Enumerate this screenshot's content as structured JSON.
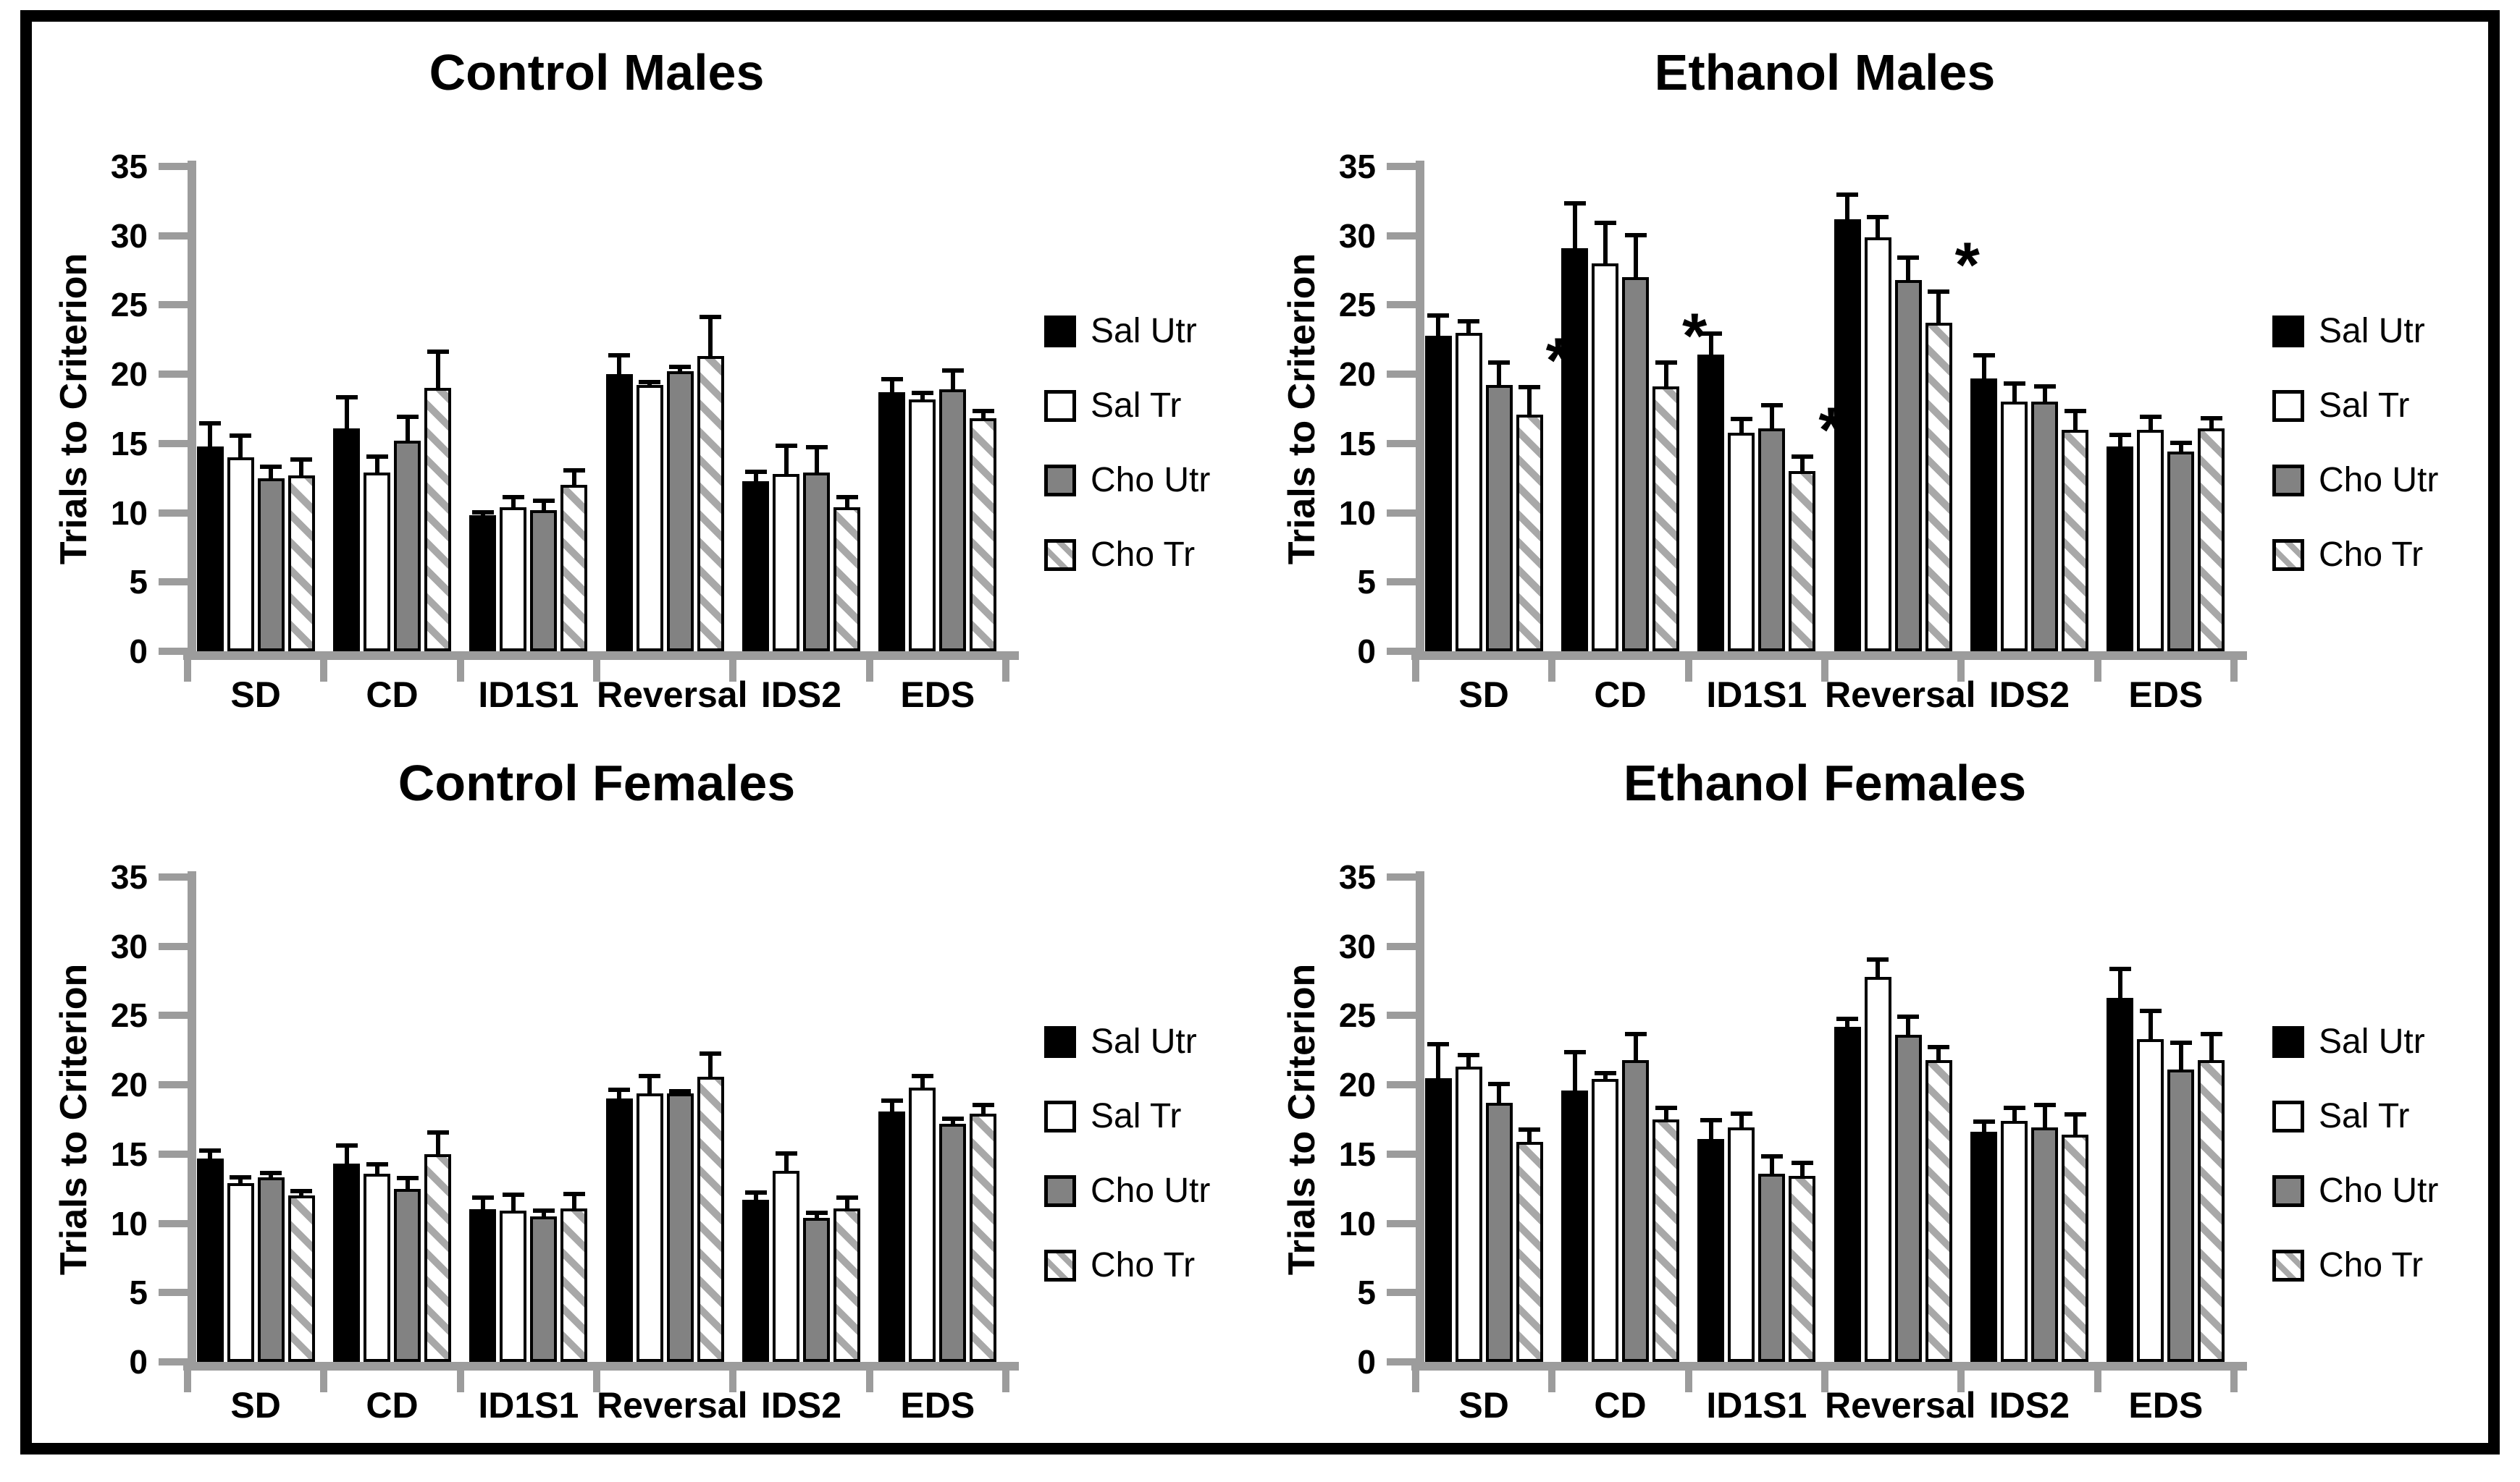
{
  "figure": {
    "background": "#ffffff",
    "border_color": "#000000",
    "axis_color": "#9c9c9c",
    "text_color": "#000000",
    "bar_black": "#000000",
    "bar_gray": "#828282",
    "hatch_stripe": "#a8a8a8"
  },
  "axes": {
    "ylabel": "Trials to Criterion",
    "ymin": 0,
    "ymax": 35,
    "ystep": 5,
    "yticks": [
      0,
      5,
      10,
      15,
      20,
      25,
      30,
      35
    ],
    "categories": [
      "SD",
      "CD",
      "ID1S1",
      "Reversal",
      "IDS2",
      "EDS"
    ],
    "grid": false
  },
  "legend": {
    "position": "right",
    "items": [
      {
        "label": "Sal Utr",
        "style": "solid-black"
      },
      {
        "label": "Sal Tr",
        "style": "white"
      },
      {
        "label": "Cho Utr",
        "style": "gray"
      },
      {
        "label": "Cho Tr",
        "style": "hatched"
      }
    ]
  },
  "chart_data": [
    {
      "type": "bar",
      "title": "Control Males",
      "position": "top-left",
      "ylabel": "Trials to Criterion",
      "ylim": [
        0,
        35
      ],
      "categories": [
        "SD",
        "CD",
        "ID1S1",
        "Reversal",
        "IDS2",
        "EDS"
      ],
      "series": [
        {
          "name": "Sal Utr",
          "values": [
            14.8,
            16.1,
            9.8,
            20.0,
            12.3,
            18.7
          ],
          "errors": [
            1.8,
            2.4,
            0.4,
            1.5,
            0.8,
            1.1
          ]
        },
        {
          "name": "Sal Tr",
          "values": [
            14.0,
            12.9,
            10.4,
            19.2,
            12.8,
            18.2
          ],
          "errors": [
            1.7,
            1.3,
            0.9,
            0.4,
            2.2,
            0.6
          ]
        },
        {
          "name": "Cho Utr",
          "values": [
            12.5,
            15.2,
            10.2,
            20.2,
            12.9,
            18.9
          ],
          "errors": [
            1.0,
            1.9,
            0.8,
            0.5,
            2.0,
            1.5
          ]
        },
        {
          "name": "Cho Tr",
          "values": [
            12.7,
            19.0,
            12.0,
            21.3,
            10.4,
            16.8
          ],
          "errors": [
            1.3,
            2.8,
            1.2,
            3.0,
            0.9,
            0.7
          ]
        }
      ],
      "significance": [],
      "sig_symbol": "*"
    },
    {
      "type": "bar",
      "title": "Ethanol Males",
      "position": "top-right",
      "ylabel": "Trials to Criterion",
      "ylim": [
        0,
        35
      ],
      "categories": [
        "SD",
        "CD",
        "ID1S1",
        "Reversal",
        "IDS2",
        "EDS"
      ],
      "series": [
        {
          "name": "Sal Utr",
          "values": [
            22.8,
            29.1,
            21.4,
            31.2,
            19.7,
            14.8
          ],
          "errors": [
            1.6,
            3.4,
            1.7,
            1.9,
            1.8,
            1.0
          ]
        },
        {
          "name": "Sal Tr",
          "values": [
            23.0,
            28.0,
            15.8,
            29.9,
            18.0,
            16.0
          ],
          "errors": [
            1.0,
            3.1,
            1.1,
            1.6,
            1.5,
            1.1
          ]
        },
        {
          "name": "Cho Utr",
          "values": [
            19.2,
            27.0,
            16.1,
            26.8,
            18.0,
            14.4
          ],
          "errors": [
            1.8,
            3.2,
            1.8,
            1.8,
            1.3,
            0.8
          ]
        },
        {
          "name": "Cho Tr",
          "values": [
            17.1,
            19.1,
            13.0,
            23.7,
            16.0,
            16.1
          ],
          "errors": [
            2.1,
            1.9,
            1.2,
            2.4,
            1.5,
            0.9
          ]
        }
      ],
      "significance": [
        {
          "series": "Cho Tr",
          "category": "SD"
        },
        {
          "series": "Cho Tr",
          "category": "CD"
        },
        {
          "series": "Cho Tr",
          "category": "ID1S1"
        },
        {
          "series": "Cho Tr",
          "category": "Reversal"
        }
      ],
      "sig_symbol": "*"
    },
    {
      "type": "bar",
      "title": "Control Females",
      "position": "bottom-left",
      "ylabel": "Trials to Criterion",
      "ylim": [
        0,
        35
      ],
      "categories": [
        "SD",
        "CD",
        "ID1S1",
        "Reversal",
        "IDS2",
        "EDS"
      ],
      "series": [
        {
          "name": "Sal Utr",
          "values": [
            14.7,
            14.3,
            11.0,
            19.0,
            11.7,
            18.1
          ],
          "errors": [
            0.7,
            1.5,
            1.0,
            0.8,
            0.7,
            0.9
          ]
        },
        {
          "name": "Sal Tr",
          "values": [
            12.9,
            13.6,
            10.9,
            19.4,
            13.8,
            19.8
          ],
          "errors": [
            0.6,
            0.8,
            1.3,
            1.4,
            1.4,
            1.0
          ]
        },
        {
          "name": "Cho Utr",
          "values": [
            13.3,
            12.5,
            10.5,
            19.4,
            10.4,
            17.2
          ],
          "errors": [
            0.5,
            0.9,
            0.6,
            0.3,
            0.5,
            0.5
          ]
        },
        {
          "name": "Cho Tr",
          "values": [
            12.0,
            15.0,
            11.1,
            20.6,
            11.1,
            17.9
          ],
          "errors": [
            0.5,
            1.7,
            1.2,
            1.8,
            0.9,
            0.8
          ]
        }
      ],
      "significance": [],
      "sig_symbol": "*"
    },
    {
      "type": "bar",
      "title": "Ethanol Females",
      "position": "bottom-right",
      "ylabel": "Trials to Criterion",
      "ylim": [
        0,
        35
      ],
      "categories": [
        "SD",
        "CD",
        "ID1S1",
        "Reversal",
        "IDS2",
        "EDS"
      ],
      "series": [
        {
          "name": "Sal Utr",
          "values": [
            20.5,
            19.6,
            16.1,
            24.2,
            16.6,
            26.3
          ],
          "errors": [
            2.6,
            2.9,
            1.5,
            0.7,
            0.9,
            2.2
          ]
        },
        {
          "name": "Sal Tr",
          "values": [
            21.3,
            20.4,
            16.9,
            27.8,
            17.4,
            23.3
          ],
          "errors": [
            1.0,
            0.6,
            1.2,
            1.4,
            1.1,
            2.2
          ]
        },
        {
          "name": "Cho Utr",
          "values": [
            18.7,
            21.8,
            13.6,
            23.6,
            16.9,
            21.1
          ],
          "errors": [
            1.5,
            2.0,
            1.4,
            1.5,
            1.8,
            2.1
          ]
        },
        {
          "name": "Cho Tr",
          "values": [
            15.9,
            17.5,
            13.4,
            21.8,
            16.4,
            21.8
          ],
          "errors": [
            1.0,
            1.0,
            1.1,
            1.1,
            1.6,
            2.0
          ]
        }
      ],
      "significance": [],
      "sig_symbol": "*"
    }
  ]
}
